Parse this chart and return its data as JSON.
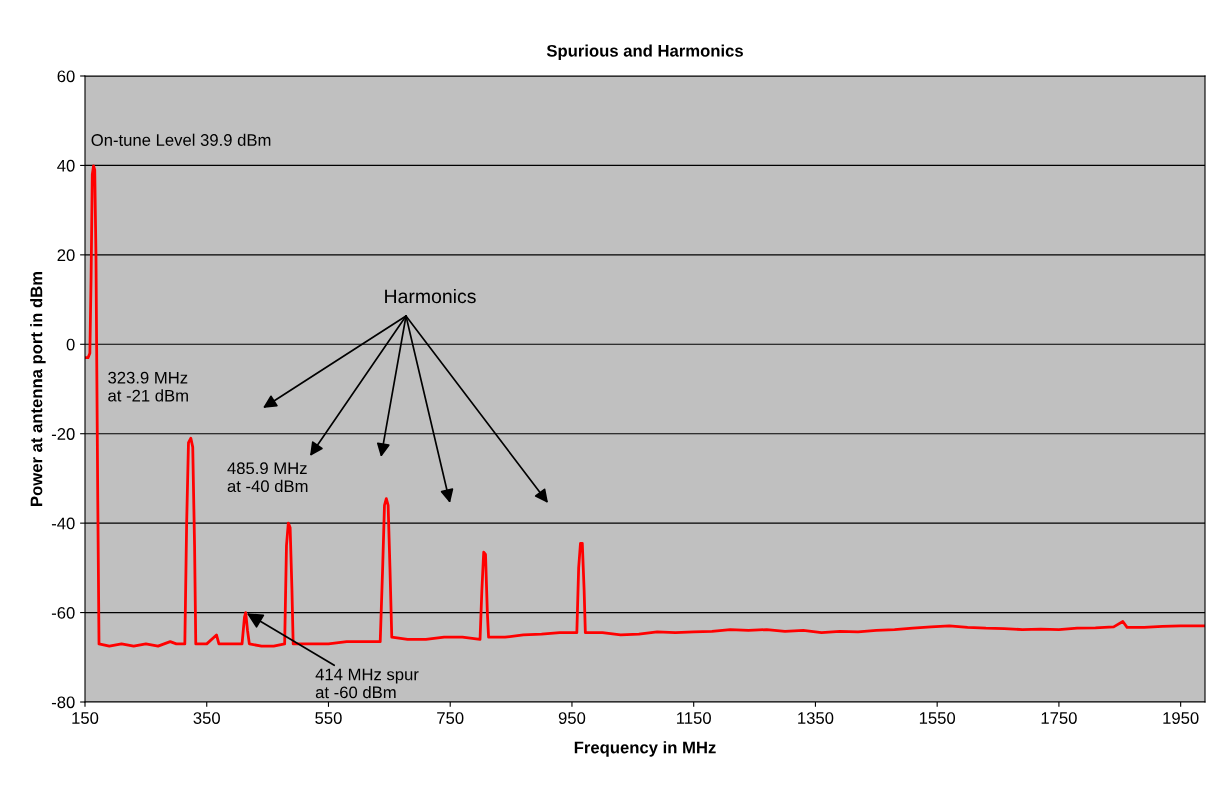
{
  "chart_data": {
    "type": "line",
    "title": "Spurious and Harmonics",
    "xlabel": "Frequency in MHz",
    "ylabel": "Power at antenna port in dBm",
    "x": [
      150,
      155,
      158,
      160,
      162,
      164,
      166,
      168,
      171,
      173,
      190,
      210,
      230,
      250,
      270,
      290,
      300,
      314,
      317,
      320,
      323.9,
      327,
      330,
      332,
      350,
      366,
      370,
      390,
      408,
      412,
      414,
      417,
      420,
      440,
      460,
      478,
      481,
      484,
      487,
      490,
      492,
      520,
      550,
      580,
      610,
      635,
      639,
      642,
      645,
      648,
      651,
      654,
      680,
      710,
      740,
      770,
      799,
      802,
      805,
      808,
      811,
      813,
      840,
      870,
      900,
      930,
      958,
      961,
      964,
      967,
      970,
      972,
      1000,
      1030,
      1060,
      1090,
      1120,
      1150,
      1180,
      1210,
      1240,
      1270,
      1300,
      1330,
      1360,
      1390,
      1420,
      1450,
      1480,
      1510,
      1540,
      1570,
      1600,
      1630,
      1660,
      1690,
      1720,
      1750,
      1780,
      1810,
      1840,
      1855,
      1862,
      1890,
      1920,
      1950,
      1990
    ],
    "series": [
      {
        "color": "#ff0000",
        "values": [
          -3,
          -3,
          -2,
          15,
          38,
          39.9,
          39,
          20,
          -35,
          -67,
          -67.5,
          -67,
          -67.5,
          -67,
          -67.5,
          -66.5,
          -67,
          -67,
          -40,
          -22,
          -21,
          -23,
          -45,
          -67,
          -67,
          -65,
          -67,
          -67,
          -67,
          -61,
          -60,
          -64,
          -67,
          -67.5,
          -67.5,
          -67,
          -45,
          -40,
          -41,
          -55,
          -67,
          -67,
          -67,
          -66.5,
          -66.5,
          -66.5,
          -50,
          -36,
          -34.5,
          -36,
          -50,
          -65.5,
          -66,
          -66,
          -65.5,
          -65.5,
          -66,
          -55,
          -46.5,
          -47,
          -60,
          -65.5,
          -65.5,
          -65,
          -64.8,
          -64.5,
          -64.5,
          -50,
          -44.5,
          -44.5,
          -55,
          -64.5,
          -64.5,
          -65,
          -64.8,
          -64.3,
          -64.5,
          -64.3,
          -64.2,
          -63.8,
          -64,
          -63.8,
          -64.2,
          -64,
          -64.5,
          -64.2,
          -64.3,
          -64,
          -63.8,
          -63.5,
          -63.2,
          -63,
          -63.3,
          -63.5,
          -63.6,
          -63.8,
          -63.7,
          -63.8,
          -63.5,
          -63.4,
          -63.2,
          -62,
          -63.3,
          -63.3,
          -63.1,
          -63,
          -63
        ]
      }
    ],
    "xlim": [
      150,
      1990
    ],
    "xticks": [
      150,
      350,
      550,
      750,
      950,
      1150,
      1350,
      1550,
      1750,
      1950
    ],
    "ylim": [
      -80,
      60
    ],
    "yticks": [
      -80,
      -60,
      -40,
      -20,
      0,
      20,
      40,
      60
    ],
    "grid": "y",
    "marker": "none",
    "line_style": "solid",
    "annotations": [
      {
        "text": "On-tune Level 39.9 dBm",
        "x": 164,
        "y": 39.9
      },
      {
        "text": "323.9 MHz\nat -21 dBm",
        "x": 323.9,
        "y": -21
      },
      {
        "text": "485.9 MHz\nat -40 dBm",
        "x": 485.9,
        "y": -40
      },
      {
        "text": "414 MHz spur\nat -60 dBm",
        "x": 414,
        "y": -60
      },
      "Harmonics"
    ]
  }
}
